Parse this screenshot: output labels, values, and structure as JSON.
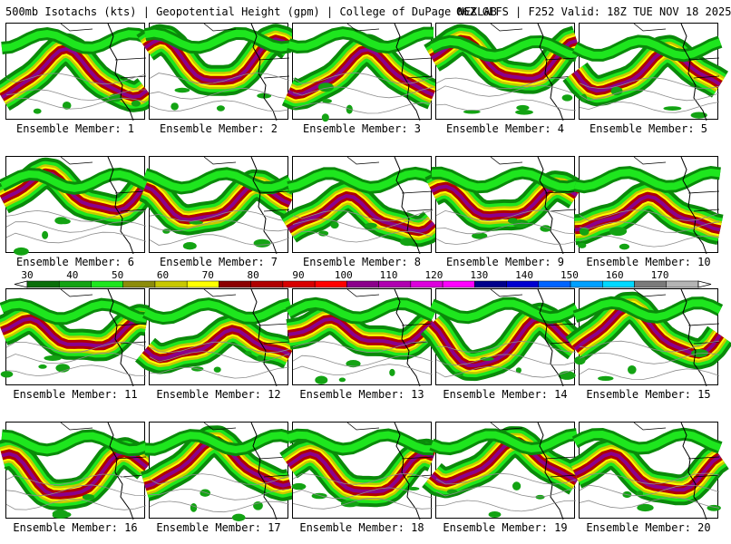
{
  "header": {
    "left": "500mb Isotachs (kts) | Geopotential Height (gpm) | College of DuPage NEXLAB",
    "right": "06Z GEFS | F252 Valid: 18Z TUE NOV 18 2025"
  },
  "panels": [
    {
      "label": "Ensemble Member: 1"
    },
    {
      "label": "Ensemble Member: 2"
    },
    {
      "label": "Ensemble Member: 3"
    },
    {
      "label": "Ensemble Member: 4"
    },
    {
      "label": "Ensemble Member: 5"
    },
    {
      "label": "Ensemble Member: 6"
    },
    {
      "label": "Ensemble Member: 7"
    },
    {
      "label": "Ensemble Member: 8"
    },
    {
      "label": "Ensemble Member: 9"
    },
    {
      "label": "Ensemble Member: 10"
    },
    {
      "label": "Ensemble Member: 11"
    },
    {
      "label": "Ensemble Member: 12"
    },
    {
      "label": "Ensemble Member: 13"
    },
    {
      "label": "Ensemble Member: 14"
    },
    {
      "label": "Ensemble Member: 15"
    },
    {
      "label": "Ensemble Member: 16"
    },
    {
      "label": "Ensemble Member: 17"
    },
    {
      "label": "Ensemble Member: 18"
    },
    {
      "label": "Ensemble Member: 19"
    },
    {
      "label": "Ensemble Member: 20"
    }
  ],
  "colorbar": {
    "ticks": [
      "30",
      "40",
      "50",
      "60",
      "70",
      "80",
      "90",
      "100",
      "110",
      "120",
      "130",
      "140",
      "150",
      "160",
      "170"
    ],
    "colors": [
      "#0a6e0a",
      "#13a313",
      "#1ee61e",
      "#8c8c0a",
      "#c8c800",
      "#ffff00",
      "#8b0000",
      "#b00000",
      "#d80000",
      "#ff0000",
      "#8b008b",
      "#b000b0",
      "#dd00dd",
      "#ff00ff",
      "#00008b",
      "#0000d0",
      "#0064ff",
      "#00a0ff",
      "#00d8ff",
      "#7a7a7a",
      "#b4b4b4"
    ]
  }
}
